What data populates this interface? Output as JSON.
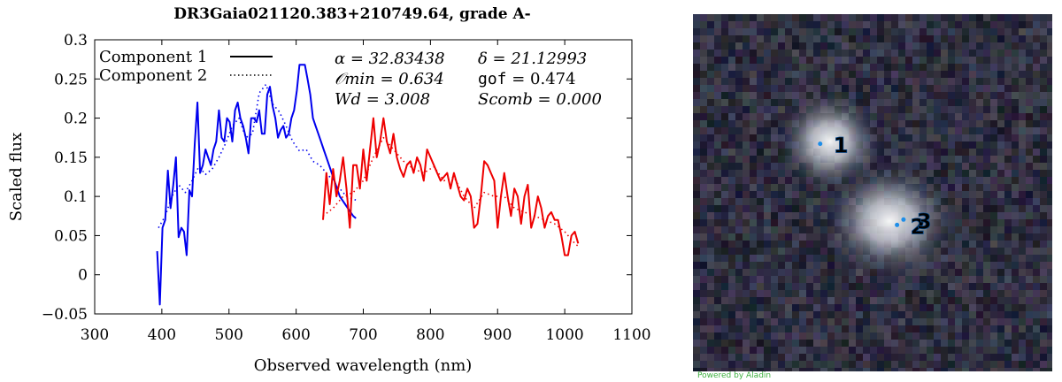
{
  "chart_data": {
    "type": "line",
    "title": "DR3Gaia021120.383+210749.64, grade A-",
    "xlabel": "Observed wavelength (nm)",
    "ylabel": "Scaled flux",
    "xlim": [
      300,
      1100
    ],
    "ylim": [
      -0.05,
      0.3
    ],
    "xticks": [
      300,
      400,
      500,
      600,
      700,
      800,
      900,
      1000,
      1100
    ],
    "yticks": [
      -0.05,
      0,
      0.05,
      0.1,
      0.15,
      0.2,
      0.25,
      0.3
    ],
    "legend": {
      "placement": "top-left",
      "entries": [
        {
          "label": "Component 1",
          "style": "solid"
        },
        {
          "label": "Component 2",
          "style": "dotted"
        }
      ]
    },
    "annotations": {
      "alpha_label": "α = 32.83438",
      "delta_label": "δ = 21.12993",
      "omin_label": "𝒪min = 0.634",
      "gof_name": "gof",
      "gof_value": " = 0.474",
      "wd_label": "Wd = 3.008",
      "scomb_label": "Scomb = 0.000"
    },
    "series": [
      {
        "style": "solid",
        "arm": "blue",
        "color": "#0000ee",
        "x": [
          393,
          397,
          401,
          405,
          409,
          413,
          417,
          421,
          425,
          429,
          433,
          437,
          441,
          445,
          449,
          453,
          457,
          461,
          465,
          469,
          473,
          477,
          481,
          485,
          489,
          493,
          497,
          501,
          505,
          509,
          513,
          517,
          521,
          525,
          529,
          533,
          537,
          541,
          545,
          549,
          553,
          557,
          561,
          565,
          569,
          573,
          577,
          581,
          585,
          589,
          593,
          597,
          601,
          605,
          609,
          613,
          617,
          621,
          625,
          629,
          633,
          637,
          641,
          645,
          649,
          653,
          657,
          661,
          665,
          669,
          673,
          677,
          681,
          685,
          689
        ],
        "y": [
          0.03,
          -0.038,
          0.06,
          0.07,
          0.133,
          0.085,
          0.115,
          0.15,
          0.048,
          0.06,
          0.055,
          0.025,
          0.108,
          0.1,
          0.168,
          0.22,
          0.13,
          0.14,
          0.16,
          0.15,
          0.14,
          0.16,
          0.17,
          0.21,
          0.175,
          0.17,
          0.2,
          0.195,
          0.17,
          0.21,
          0.22,
          0.2,
          0.19,
          0.175,
          0.155,
          0.2,
          0.2,
          0.195,
          0.21,
          0.18,
          0.18,
          0.23,
          0.24,
          0.215,
          0.2,
          0.175,
          0.185,
          0.19,
          0.175,
          0.18,
          0.2,
          0.21,
          0.235,
          0.268,
          0.268,
          0.268,
          0.25,
          0.23,
          0.2,
          0.19,
          0.18,
          0.17,
          0.16,
          0.15,
          0.14,
          0.13,
          0.12,
          0.11,
          0.1,
          0.095,
          0.09,
          0.085,
          0.08,
          0.075,
          0.072
        ]
      },
      {
        "style": "dotted",
        "arm": "blue",
        "color": "#0000ee",
        "x": [
          395,
          405,
          415,
          425,
          435,
          445,
          455,
          465,
          475,
          485,
          495,
          505,
          515,
          525,
          535,
          545,
          555,
          565,
          575,
          585,
          595,
          605,
          615,
          625,
          635,
          645,
          655,
          665,
          675,
          690
        ],
        "y": [
          0.06,
          0.075,
          0.1,
          0.115,
          0.105,
          0.12,
          0.138,
          0.128,
          0.135,
          0.15,
          0.168,
          0.19,
          0.2,
          0.175,
          0.18,
          0.232,
          0.243,
          0.218,
          0.208,
          0.19,
          0.17,
          0.158,
          0.16,
          0.145,
          0.14,
          0.13,
          0.12,
          0.11,
          0.1,
          0.095
        ]
      },
      {
        "style": "solid",
        "arm": "red",
        "color": "#ee0000",
        "x": [
          640,
          645,
          650,
          655,
          660,
          665,
          670,
          675,
          680,
          685,
          690,
          695,
          700,
          705,
          710,
          715,
          720,
          725,
          730,
          735,
          740,
          745,
          750,
          755,
          760,
          765,
          770,
          775,
          780,
          785,
          790,
          795,
          800,
          805,
          810,
          815,
          820,
          825,
          830,
          835,
          840,
          845,
          850,
          855,
          860,
          865,
          870,
          875,
          880,
          885,
          890,
          895,
          900,
          905,
          910,
          915,
          920,
          925,
          930,
          935,
          940,
          945,
          950,
          955,
          960,
          965,
          970,
          975,
          980,
          985,
          990,
          995,
          1000,
          1005,
          1010,
          1015,
          1020
        ],
        "y": [
          0.07,
          0.13,
          0.09,
          0.135,
          0.1,
          0.12,
          0.15,
          0.11,
          0.06,
          0.14,
          0.14,
          0.11,
          0.16,
          0.12,
          0.16,
          0.2,
          0.15,
          0.17,
          0.2,
          0.17,
          0.155,
          0.18,
          0.15,
          0.135,
          0.125,
          0.14,
          0.145,
          0.13,
          0.15,
          0.14,
          0.12,
          0.16,
          0.15,
          0.14,
          0.13,
          0.12,
          0.125,
          0.13,
          0.11,
          0.13,
          0.115,
          0.1,
          0.095,
          0.11,
          0.1,
          0.06,
          0.065,
          0.1,
          0.145,
          0.14,
          0.13,
          0.12,
          0.06,
          0.1,
          0.13,
          0.1,
          0.075,
          0.11,
          0.1,
          0.065,
          0.1,
          0.115,
          0.06,
          0.075,
          0.1,
          0.085,
          0.06,
          0.075,
          0.08,
          0.07,
          0.07,
          0.05,
          0.025,
          0.025,
          0.05,
          0.055,
          0.04
        ]
      },
      {
        "style": "dotted",
        "arm": "red",
        "color": "#ee0000",
        "x": [
          640,
          655,
          670,
          685,
          700,
          715,
          730,
          745,
          760,
          775,
          790,
          805,
          820,
          835,
          850,
          865,
          880,
          895,
          910,
          925,
          940,
          955,
          970,
          985,
          1000,
          1015,
          1022
        ],
        "y": [
          0.075,
          0.085,
          0.1,
          0.105,
          0.12,
          0.15,
          0.175,
          0.16,
          0.145,
          0.135,
          0.13,
          0.138,
          0.12,
          0.125,
          0.1,
          0.085,
          0.105,
          0.1,
          0.1,
          0.085,
          0.08,
          0.075,
          0.07,
          0.065,
          0.055,
          0.04,
          0.035
        ]
      }
    ]
  },
  "image_panel": {
    "credit": "Powered by Aladin",
    "markers": [
      {
        "label": "1",
        "u": 0.354,
        "v": 0.363
      },
      {
        "label": "2",
        "u": 0.568,
        "v": 0.59
      },
      {
        "label": "3",
        "u": 0.586,
        "v": 0.575
      }
    ]
  }
}
